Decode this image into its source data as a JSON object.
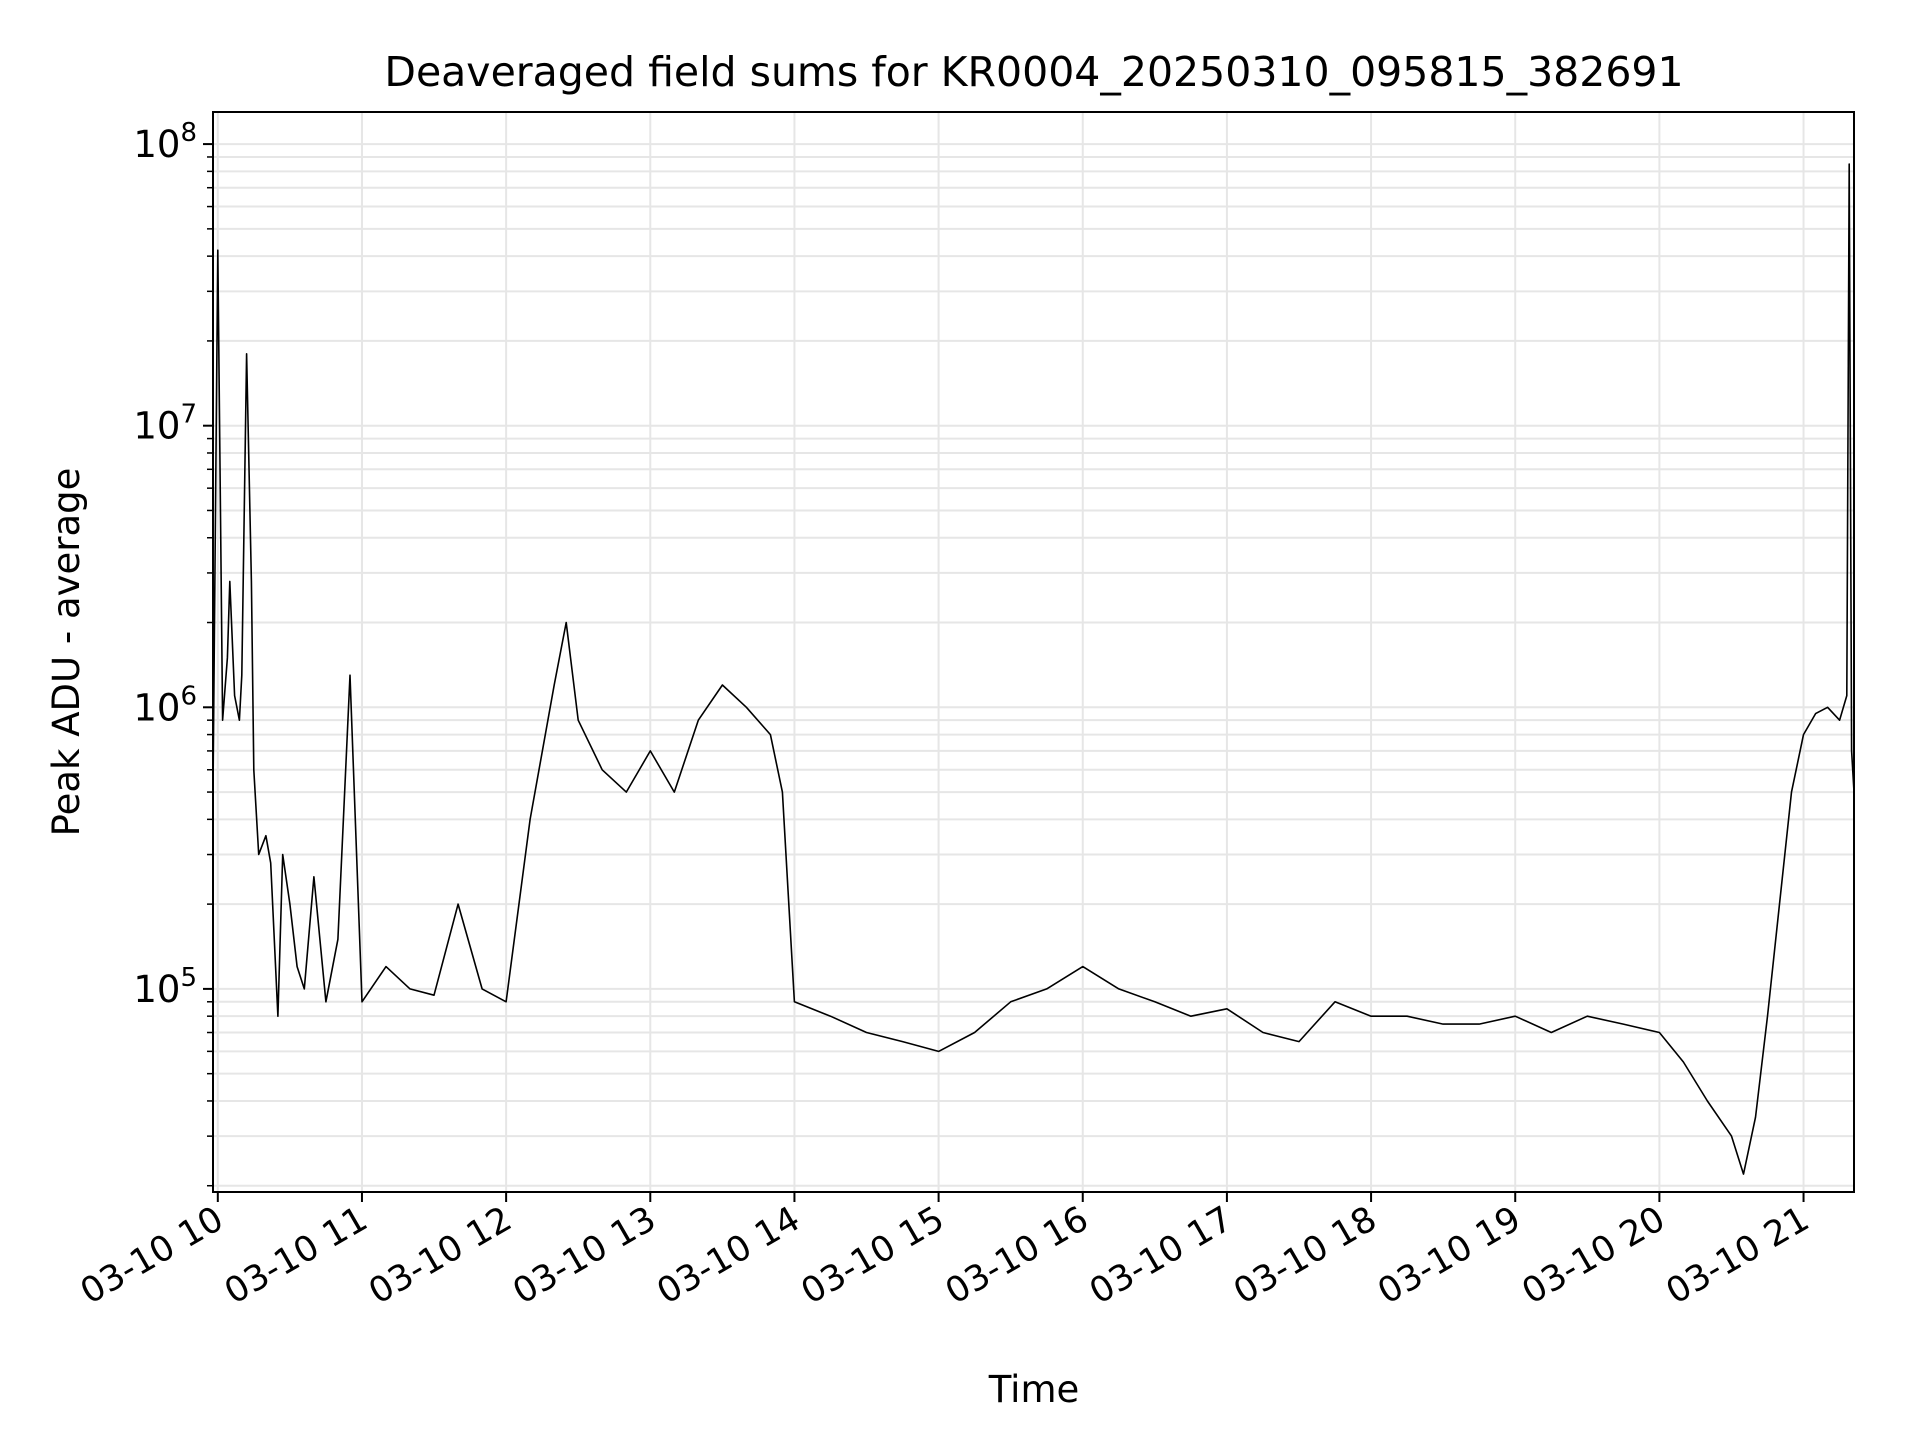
{
  "chart_data": {
    "type": "line",
    "title": "Deaveraged field sums for KR0004_20250310_095815_382691",
    "xlabel": "Time",
    "ylabel": "Peak ADU - average",
    "x_ticks": [
      "03-10 10",
      "03-10 11",
      "03-10 12",
      "03-10 13",
      "03-10 14",
      "03-10 15",
      "03-10 16",
      "03-10 17",
      "03-10 18",
      "03-10 19",
      "03-10 20",
      "03-10 21"
    ],
    "y_scale": "log",
    "y_ticks": [
      {
        "value": 100000,
        "base": "10",
        "exp": "5"
      },
      {
        "value": 1000000,
        "base": "10",
        "exp": "6"
      },
      {
        "value": 10000000,
        "base": "10",
        "exp": "7"
      },
      {
        "value": 100000000,
        "base": "10",
        "exp": "8"
      }
    ],
    "xlim": [
      "2025-03-10 09:58",
      "2025-03-10 21:21"
    ],
    "ylim": [
      19000,
      130000000
    ],
    "grid": true,
    "line_color": "#000000",
    "grid_color": "#e6e6e6",
    "series": [
      {
        "x": [
          "2025-03-10 09:58",
          "2025-03-10 10:00",
          "2025-03-10 10:02",
          "2025-03-10 10:04",
          "2025-03-10 10:05",
          "2025-03-10 10:07",
          "2025-03-10 10:09",
          "2025-03-10 10:10",
          "2025-03-10 10:12",
          "2025-03-10 10:14",
          "2025-03-10 10:15",
          "2025-03-10 10:17",
          "2025-03-10 10:20",
          "2025-03-10 10:22",
          "2025-03-10 10:25",
          "2025-03-10 10:27",
          "2025-03-10 10:30",
          "2025-03-10 10:33",
          "2025-03-10 10:36",
          "2025-03-10 10:40",
          "2025-03-10 10:45",
          "2025-03-10 10:50",
          "2025-03-10 10:55",
          "2025-03-10 11:00",
          "2025-03-10 11:10",
          "2025-03-10 11:20",
          "2025-03-10 11:30",
          "2025-03-10 11:40",
          "2025-03-10 11:50",
          "2025-03-10 12:00",
          "2025-03-10 12:10",
          "2025-03-10 12:20",
          "2025-03-10 12:25",
          "2025-03-10 12:30",
          "2025-03-10 12:40",
          "2025-03-10 12:50",
          "2025-03-10 13:00",
          "2025-03-10 13:10",
          "2025-03-10 13:20",
          "2025-03-10 13:30",
          "2025-03-10 13:40",
          "2025-03-10 13:50",
          "2025-03-10 13:55",
          "2025-03-10 14:00",
          "2025-03-10 14:15",
          "2025-03-10 14:30",
          "2025-03-10 14:45",
          "2025-03-10 15:00",
          "2025-03-10 15:15",
          "2025-03-10 15:30",
          "2025-03-10 15:45",
          "2025-03-10 16:00",
          "2025-03-10 16:15",
          "2025-03-10 16:30",
          "2025-03-10 16:45",
          "2025-03-10 17:00",
          "2025-03-10 17:15",
          "2025-03-10 17:30",
          "2025-03-10 17:45",
          "2025-03-10 18:00",
          "2025-03-10 18:15",
          "2025-03-10 18:30",
          "2025-03-10 18:45",
          "2025-03-10 19:00",
          "2025-03-10 19:15",
          "2025-03-10 19:30",
          "2025-03-10 19:45",
          "2025-03-10 20:00",
          "2025-03-10 20:10",
          "2025-03-10 20:20",
          "2025-03-10 20:30",
          "2025-03-10 20:35",
          "2025-03-10 20:40",
          "2025-03-10 20:45",
          "2025-03-10 20:50",
          "2025-03-10 20:55",
          "2025-03-10 21:00",
          "2025-03-10 21:05",
          "2025-03-10 21:10",
          "2025-03-10 21:15",
          "2025-03-10 21:18",
          "2025-03-10 21:19",
          "2025-03-10 21:20",
          "2025-03-10 21:21"
        ],
        "y": [
          500000,
          42000000,
          900000,
          1500000,
          2800000,
          1100000,
          900000,
          1300000,
          18000000,
          2800000,
          600000,
          300000,
          350000,
          280000,
          80000,
          300000,
          200000,
          120000,
          100000,
          250000,
          90000,
          150000,
          1300000,
          90000,
          120000,
          100000,
          95000,
          200000,
          100000,
          90000,
          400000,
          1200000,
          2000000,
          900000,
          600000,
          500000,
          700000,
          500000,
          900000,
          1200000,
          1000000,
          800000,
          500000,
          90000,
          80000,
          70000,
          65000,
          60000,
          70000,
          90000,
          100000,
          120000,
          100000,
          90000,
          80000,
          85000,
          70000,
          65000,
          90000,
          80000,
          80000,
          75000,
          75000,
          80000,
          70000,
          80000,
          75000,
          70000,
          55000,
          40000,
          30000,
          22000,
          35000,
          80000,
          200000,
          500000,
          800000,
          950000,
          1000000,
          900000,
          1100000,
          85000000,
          700000,
          500000
        ]
      }
    ]
  }
}
